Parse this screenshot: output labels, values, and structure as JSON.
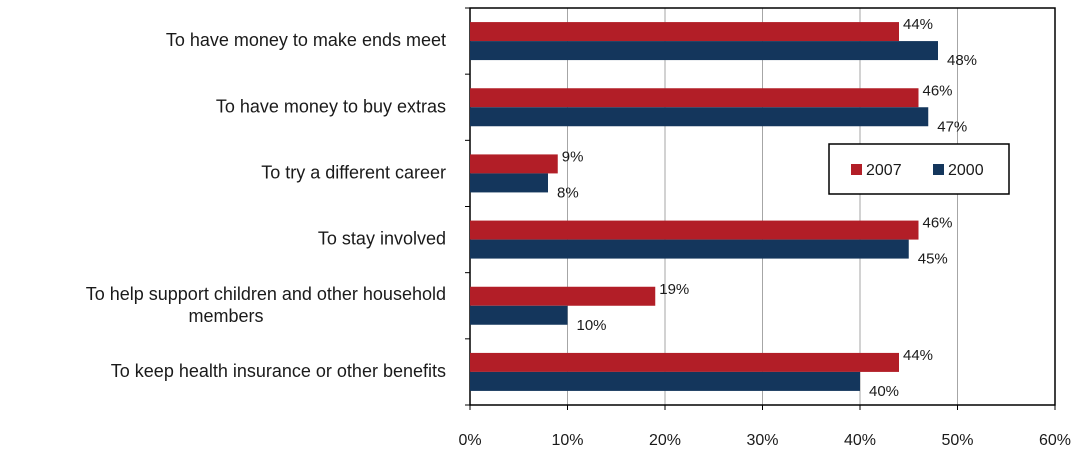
{
  "chart_data": {
    "type": "bar",
    "orientation": "horizontal",
    "categories": [
      "To have money to make ends meet",
      "To have money to buy extras",
      "To try a different career",
      "To stay involved",
      "To help support children and other household members",
      "To keep health insurance or other benefits"
    ],
    "category_label_lines": [
      [
        "To have money to make ends meet"
      ],
      [
        "To have money to buy extras"
      ],
      [
        "To try a different career"
      ],
      [
        "To stay involved"
      ],
      [
        "To help support children and other household",
        "members"
      ],
      [
        "To keep health insurance or other benefits"
      ]
    ],
    "series": [
      {
        "name": "2007",
        "color": "#B21E27",
        "values": [
          44,
          46,
          9,
          46,
          19,
          44
        ],
        "labels": [
          "44%",
          "46%",
          "9%",
          "46%",
          "19%",
          "44%"
        ]
      },
      {
        "name": "2000",
        "color": "#14365C",
        "values": [
          48,
          47,
          8,
          45,
          10,
          40
        ],
        "labels": [
          "48%",
          "47%",
          "8%",
          "45%",
          "10%",
          "40%"
        ]
      }
    ],
    "x_ticks": [
      "0%",
      "10%",
      "20%",
      "30%",
      "40%",
      "50%",
      "60%"
    ],
    "xlim": [
      0,
      60
    ],
    "title": "",
    "xlabel": "",
    "ylabel": "",
    "grid": "vertical",
    "legend": {
      "placement": "right-middle",
      "entries": [
        "2007",
        "2000"
      ]
    }
  }
}
